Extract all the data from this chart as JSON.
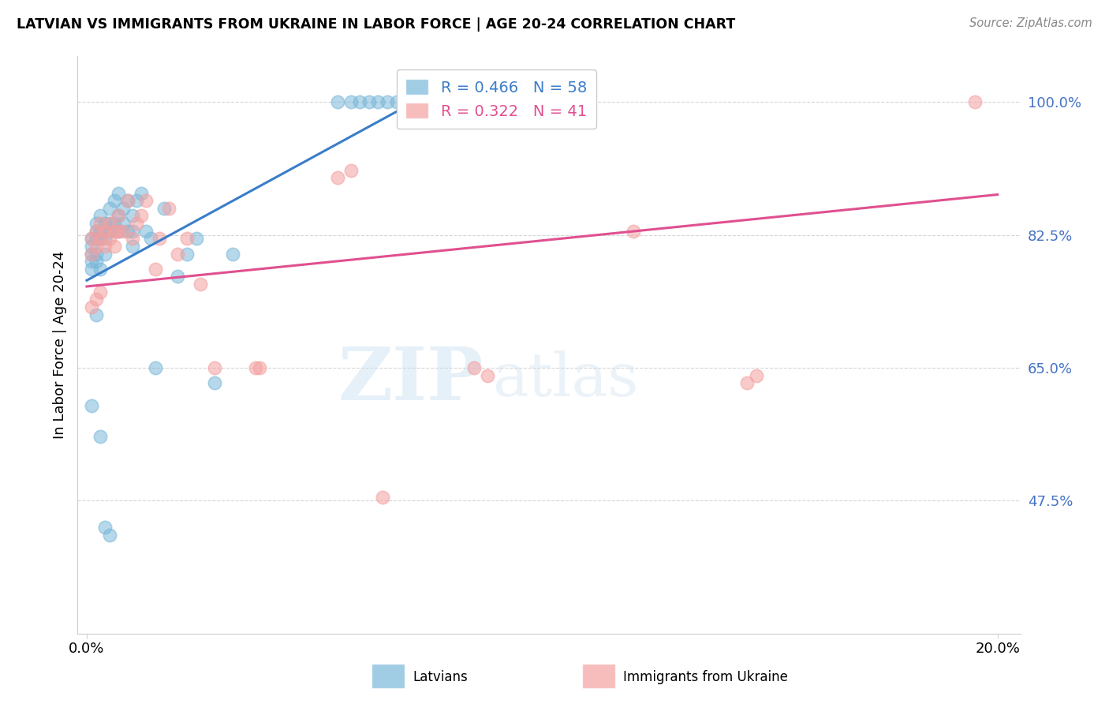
{
  "title": "LATVIAN VS IMMIGRANTS FROM UKRAINE IN LABOR FORCE | AGE 20-24 CORRELATION CHART",
  "source": "Source: ZipAtlas.com",
  "ylabel": "In Labor Force | Age 20-24",
  "y_ticks": [
    0.475,
    0.65,
    0.825,
    1.0
  ],
  "y_tick_labels": [
    "47.5%",
    "65.0%",
    "82.5%",
    "100.0%"
  ],
  "xlim": [
    -0.002,
    0.205
  ],
  "ylim": [
    0.3,
    1.06
  ],
  "blue_R": 0.466,
  "blue_N": 58,
  "pink_R": 0.322,
  "pink_N": 41,
  "blue_color": "#7ab8d9",
  "pink_color": "#f4a0a0",
  "blue_line_color": "#3a7dc9",
  "pink_line_color": "#e05090",
  "watermark_zip": "ZIP",
  "watermark_atlas": "atlas",
  "legend_label_blue": "Latvians",
  "legend_label_pink": "Immigrants from Ukraine",
  "blue_line_x0": 0.0,
  "blue_line_y0": 0.765,
  "blue_line_x1": 0.075,
  "blue_line_y1": 1.01,
  "pink_line_x0": 0.0,
  "pink_line_y0": 0.757,
  "pink_line_x1": 0.2,
  "pink_line_y1": 0.878,
  "blue_x": [
    0.001,
    0.001,
    0.001,
    0.001,
    0.001,
    0.002,
    0.002,
    0.002,
    0.002,
    0.002,
    0.003,
    0.003,
    0.003,
    0.003,
    0.004,
    0.004,
    0.004,
    0.005,
    0.005,
    0.005,
    0.006,
    0.006,
    0.007,
    0.007,
    0.007,
    0.008,
    0.008,
    0.009,
    0.009,
    0.01,
    0.01,
    0.01,
    0.011,
    0.012,
    0.013,
    0.014,
    0.015,
    0.017,
    0.02,
    0.022,
    0.024,
    0.028,
    0.032,
    0.001,
    0.002,
    0.003,
    0.004,
    0.005,
    0.055,
    0.058,
    0.06,
    0.062,
    0.064,
    0.066,
    0.068,
    0.07,
    0.072,
    0.075
  ],
  "blue_y": [
    0.82,
    0.81,
    0.8,
    0.79,
    0.78,
    0.84,
    0.83,
    0.82,
    0.8,
    0.79,
    0.85,
    0.83,
    0.82,
    0.78,
    0.84,
    0.82,
    0.8,
    0.86,
    0.84,
    0.83,
    0.87,
    0.84,
    0.88,
    0.85,
    0.83,
    0.86,
    0.84,
    0.87,
    0.83,
    0.85,
    0.83,
    0.81,
    0.87,
    0.88,
    0.83,
    0.82,
    0.65,
    0.86,
    0.77,
    0.8,
    0.82,
    0.63,
    0.8,
    0.6,
    0.72,
    0.56,
    0.44,
    0.43,
    1.0,
    1.0,
    1.0,
    1.0,
    1.0,
    1.0,
    1.0,
    1.0,
    1.0,
    1.0
  ],
  "pink_x": [
    0.001,
    0.001,
    0.002,
    0.002,
    0.003,
    0.003,
    0.004,
    0.004,
    0.005,
    0.005,
    0.006,
    0.006,
    0.007,
    0.007,
    0.008,
    0.009,
    0.01,
    0.011,
    0.012,
    0.013,
    0.015,
    0.016,
    0.018,
    0.02,
    0.022,
    0.025,
    0.028,
    0.001,
    0.002,
    0.003,
    0.037,
    0.038,
    0.055,
    0.058,
    0.065,
    0.085,
    0.088,
    0.12,
    0.145,
    0.147,
    0.195
  ],
  "pink_y": [
    0.82,
    0.8,
    0.83,
    0.81,
    0.84,
    0.82,
    0.83,
    0.81,
    0.84,
    0.82,
    0.83,
    0.81,
    0.85,
    0.83,
    0.83,
    0.87,
    0.82,
    0.84,
    0.85,
    0.87,
    0.78,
    0.82,
    0.86,
    0.8,
    0.82,
    0.76,
    0.65,
    0.73,
    0.74,
    0.75,
    0.65,
    0.65,
    0.9,
    0.91,
    0.48,
    0.65,
    0.64,
    0.83,
    0.63,
    0.64,
    1.0
  ]
}
